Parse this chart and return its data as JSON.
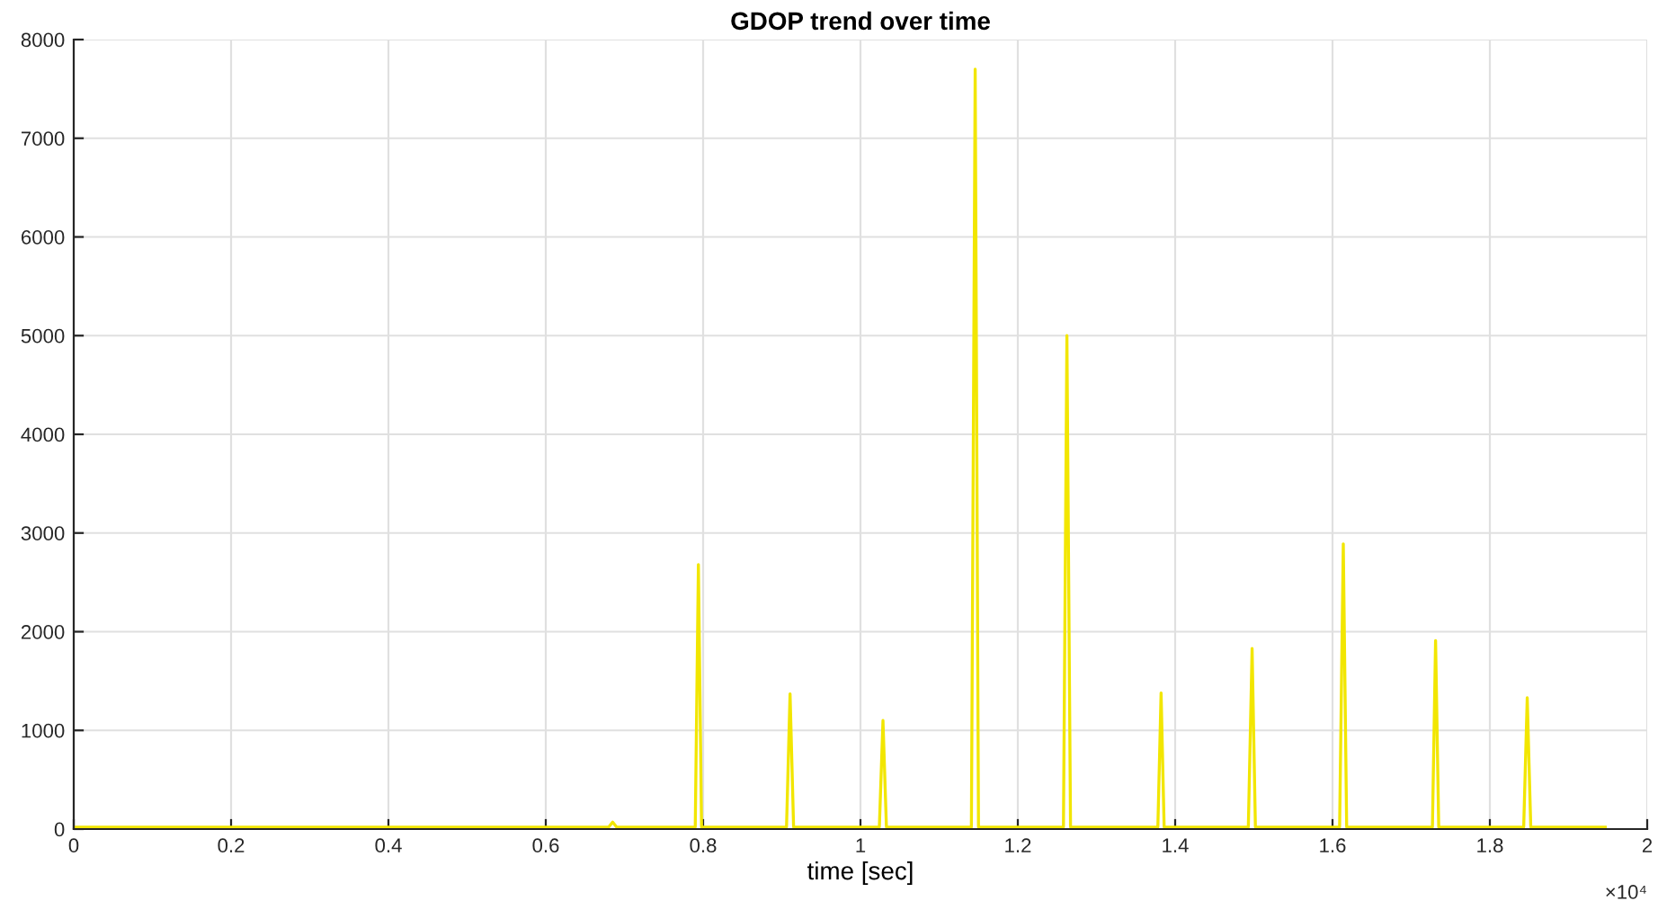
{
  "chart_data": {
    "type": "line",
    "title": "GDOP trend over time",
    "xlabel": "time [sec]",
    "annotations": [
      "×10⁴"
    ],
    "series": [
      {
        "color": "#f2e600",
        "x": [
          0,
          0.2,
          0.4,
          0.6,
          0.68,
          0.685,
          0.69,
          0.79,
          0.794,
          0.798,
          0.906,
          0.9105,
          0.915,
          1.024,
          1.0286,
          1.033,
          1.141,
          1.1458,
          1.15,
          1.258,
          1.2624,
          1.267,
          1.378,
          1.3821,
          1.386,
          1.493,
          1.4978,
          1.502,
          1.609,
          1.6137,
          1.618,
          1.727,
          1.731,
          1.735,
          1.843,
          1.8475,
          1.852,
          1.9467
        ],
        "values": [
          20,
          20,
          20,
          20,
          20,
          70,
          20,
          20,
          2680,
          20,
          20,
          1370,
          20,
          20,
          1100,
          20,
          20,
          7700,
          20,
          20,
          5000,
          20,
          20,
          1380,
          20,
          20,
          1830,
          20,
          20,
          2890,
          20,
          20,
          1910,
          20,
          20,
          1330,
          20,
          20
        ]
      }
    ],
    "xlim": [
      0,
      2
    ],
    "xticks": [
      0,
      0.2,
      0.4,
      0.6,
      0.8,
      1,
      1.2,
      1.4,
      1.6,
      1.8,
      2
    ],
    "ylim": [
      0,
      8000
    ],
    "yticks": [
      0,
      1000,
      2000,
      3000,
      4000,
      5000,
      6000,
      7000,
      8000
    ],
    "grid": true
  }
}
